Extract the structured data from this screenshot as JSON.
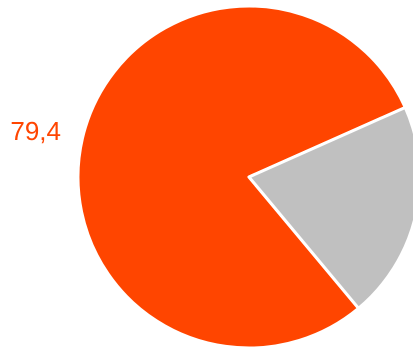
{
  "chart_data": {
    "type": "pie",
    "slices": [
      {
        "value": 79.4,
        "label": "79,4",
        "color": "#ff4500"
      },
      {
        "value": 20.6,
        "label": "",
        "color": "#c0c0c0"
      }
    ],
    "start_angle_deg": 24,
    "direction": "counterclockwise",
    "legend": "none",
    "border_color": "#ffffff"
  }
}
